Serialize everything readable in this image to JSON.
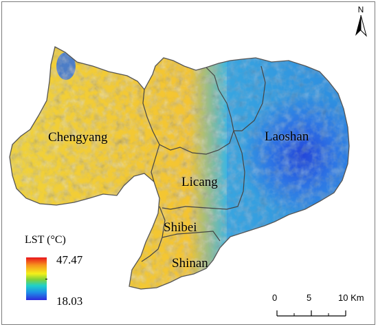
{
  "map": {
    "districts": [
      {
        "id": "chengyang",
        "name": "Chengyang"
      },
      {
        "id": "laoshan",
        "name": "Laoshan"
      },
      {
        "id": "licang",
        "name": "Licang"
      },
      {
        "id": "shibei",
        "name": "Shibei"
      },
      {
        "id": "shinan",
        "name": "Shinan"
      }
    ],
    "north_arrow": {
      "letter": "N"
    },
    "legend": {
      "title": "LST (°C)",
      "max": "47.47",
      "min": "18.03",
      "colors": [
        "#e8141c",
        "#f7941d",
        "#f4f01a",
        "#7fd13b",
        "#1fd1c8",
        "#1e90e8",
        "#2d2bdc"
      ]
    },
    "scale_bar": {
      "labels": [
        "0",
        "5",
        "10 Km"
      ]
    }
  }
}
